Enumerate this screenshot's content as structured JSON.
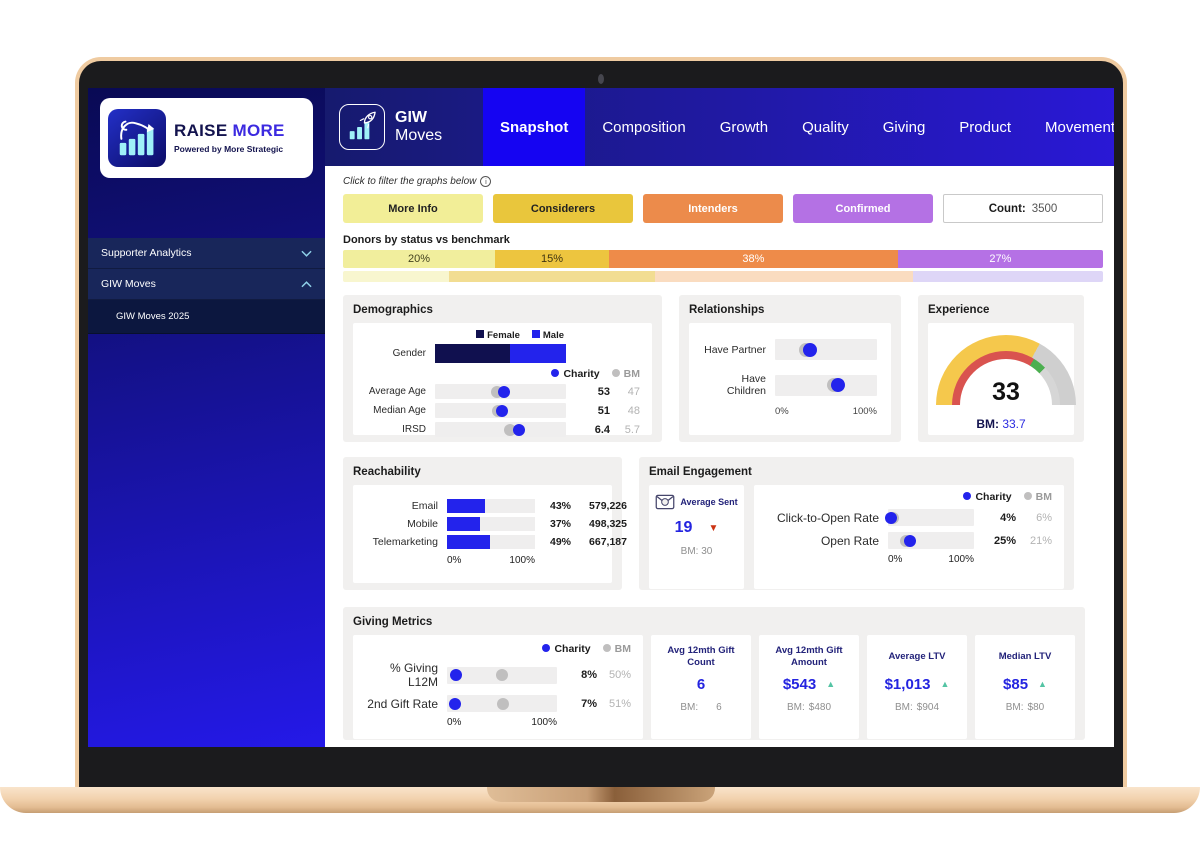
{
  "sidebar": {
    "logo": {
      "brand_1": "RAISE",
      "brand_2": "MORE",
      "tagline": "Powered by More Strategic"
    },
    "menu": [
      {
        "label": "Supporter Analytics",
        "chevron": "down",
        "child": false
      },
      {
        "label": "GIW Moves",
        "chevron": "up",
        "child": false
      },
      {
        "label": "GIW Moves 2025",
        "chevron": "",
        "child": true
      }
    ]
  },
  "topnav": {
    "app_1": "GIW",
    "app_2": "Moves",
    "tabs": [
      "Snapshot",
      "Composition",
      "Growth",
      "Quality",
      "Giving",
      "Product",
      "Movement"
    ],
    "active": "Snapshot"
  },
  "filters": {
    "hint": "Click to filter the graphs below",
    "buttons": [
      {
        "label": "More Info",
        "bg": "#f2ee97",
        "color": "#222222"
      },
      {
        "label": "Considerers",
        "bg": "#e9c63c",
        "color": "#222222"
      },
      {
        "label": "Intenders",
        "bg": "#ec8b4b",
        "color": "#ffffff"
      },
      {
        "label": "Confirmed",
        "bg": "#b471e4",
        "color": "#ffffff"
      }
    ],
    "count_label": "Count:",
    "count_value": "3500"
  },
  "status": {
    "title": "Donors by status vs benchmark",
    "segments": [
      {
        "label": "20%",
        "value": 20,
        "color": "#f1ee9d",
        "text": "#44431f"
      },
      {
        "label": "15%",
        "value": 15,
        "color": "#edc53f",
        "text": "#403410"
      },
      {
        "label": "38%",
        "value": 38,
        "color": "#ee8b49",
        "text": "#ffffff"
      },
      {
        "label": "27%",
        "value": 27,
        "color": "#b571e5",
        "text": "#ffffff"
      }
    ],
    "benchmark_segments": [
      {
        "value": 14,
        "color": "#f8f6cf"
      },
      {
        "value": 27,
        "color": "#f2dd92"
      },
      {
        "value": 34,
        "color": "#fadcc0"
      },
      {
        "value": 25,
        "color": "#ded6f7"
      }
    ]
  },
  "demographics": {
    "title": "Demographics",
    "gender": {
      "label": "Gender",
      "legend": [
        {
          "label": "Female",
          "color": "#10104f"
        },
        {
          "label": "Male",
          "color": "#2323ec"
        }
      ],
      "female_pct": 57,
      "male_pct": 43
    },
    "legend": {
      "charity": "Charity",
      "bm": "BM"
    },
    "rows": [
      {
        "label": "Average Age",
        "charity": "53",
        "bm": "47",
        "charity_pct": 53,
        "bm_pct": 47
      },
      {
        "label": "Median Age",
        "charity": "51",
        "bm": "48",
        "charity_pct": 51,
        "bm_pct": 48
      },
      {
        "label": "IRSD",
        "charity": "6.4",
        "bm": "5.7",
        "charity_pct": 64,
        "bm_pct": 57
      }
    ]
  },
  "relationships": {
    "title": "Relationships",
    "rows": [
      {
        "label": "Have Partner",
        "charity_pct": 34,
        "bm_pct": 30
      },
      {
        "label": "Have Children",
        "charity_pct": 62,
        "bm_pct": 58
      }
    ],
    "axis": {
      "min": "0%",
      "max": "100%"
    }
  },
  "experience": {
    "title": "Experience",
    "value": "33",
    "bm_label": "BM:",
    "bm_value": "33.7",
    "gauge": {
      "max": 50,
      "value": 33,
      "bm": 33.7,
      "fill_color": "#f5c84c",
      "track_color": "#cfcfcf",
      "red_color": "#d9534f",
      "green_color": "#4caf50",
      "inner_track_color": "#d6d6d6"
    }
  },
  "reachability": {
    "title": "Reachability",
    "rows": [
      {
        "label": "Email",
        "pct": 43,
        "pct_label": "43%",
        "count": "579,226"
      },
      {
        "label": "Mobile",
        "pct": 37,
        "pct_label": "37%",
        "count": "498,325"
      },
      {
        "label": "Telemarketing",
        "pct": 49,
        "pct_label": "49%",
        "count": "667,187"
      }
    ],
    "axis": {
      "min": "0%",
      "max": "100%"
    }
  },
  "email": {
    "title": "Email Engagement",
    "avg": {
      "label": "Average Sent",
      "value": "19",
      "trend": "down",
      "bm": "BM: 30"
    },
    "legend": {
      "charity": "Charity",
      "bm": "BM"
    },
    "rows": [
      {
        "label": "Click-to-Open Rate",
        "charity": "4%",
        "bm": "6%",
        "charity_pct": 4,
        "bm_pct": 6
      },
      {
        "label": "Open Rate",
        "charity": "25%",
        "bm": "21%",
        "charity_pct": 25,
        "bm_pct": 21
      }
    ],
    "axis": {
      "min": "0%",
      "max": "100%"
    }
  },
  "giving": {
    "title": "Giving Metrics",
    "legend": {
      "charity": "Charity",
      "bm": "BM"
    },
    "rows": [
      {
        "label": "% Giving L12M",
        "charity": "8%",
        "bm": "50%",
        "charity_pct": 8,
        "bm_pct": 50
      },
      {
        "label": "2nd Gift Rate",
        "charity": "7%",
        "bm": "51%",
        "charity_pct": 7,
        "bm_pct": 51
      }
    ],
    "axis": {
      "min": "0%",
      "max": "100%"
    },
    "kpis": [
      {
        "label": "Avg 12mth Gift Count",
        "value": "6",
        "trend": "",
        "bm_label": "BM:",
        "bm_value": "6"
      },
      {
        "label": "Avg 12mth Gift Amount",
        "value": "$543",
        "trend": "up",
        "bm_label": "BM:",
        "bm_value": "$480"
      },
      {
        "label": "Average LTV",
        "value": "$1,013",
        "trend": "up",
        "bm_label": "BM:",
        "bm_value": "$904"
      },
      {
        "label": "Median LTV",
        "value": "$85",
        "trend": "up",
        "bm_label": "BM:",
        "bm_value": "$80"
      }
    ]
  },
  "colors": {
    "accent_blue": "#2323ec",
    "navy": "#10104f",
    "active_tab": "#1504f2",
    "teal_up": "#54c4a4",
    "red_down": "#cc3312"
  }
}
